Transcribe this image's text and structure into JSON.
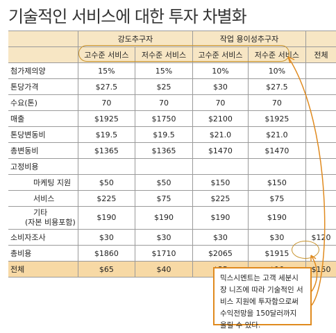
{
  "title": "기술적인 서비스에 대한 투자 차별화",
  "groups": {
    "strategy_a": "강도추구자",
    "strategy_b": "작업 용이성추구자"
  },
  "columns": [
    "고수준 서비스",
    "저수준 서비스",
    "고수준 서비스",
    "저수준 서비스",
    "전체"
  ],
  "rows": [
    {
      "label": "첨가제의양",
      "values": [
        "15%",
        "15%",
        "10%",
        "10%",
        ""
      ]
    },
    {
      "label": "톤당가격",
      "values": [
        "$27.5",
        "$25",
        "$30",
        "$27.5",
        ""
      ]
    },
    {
      "label": "수요(톤)",
      "values": [
        "70",
        "70",
        "70",
        "70",
        ""
      ]
    },
    {
      "label": "매출",
      "values": [
        "$1925",
        "$1750",
        "$2100",
        "$1925",
        ""
      ]
    },
    {
      "label": "톤당변동비",
      "values": [
        "$19.5",
        "$19.5",
        "$21.0",
        "$21.0",
        ""
      ]
    },
    {
      "label": "총변동비",
      "values": [
        "$1365",
        "$1365",
        "$1470",
        "$1470",
        ""
      ]
    },
    {
      "label": "고정비용",
      "values": [
        "",
        "",
        "",
        "",
        ""
      ]
    },
    {
      "label": "마케팅 지원",
      "values": [
        "$50",
        "$50",
        "$150",
        "$150",
        ""
      ]
    },
    {
      "label": "서비스",
      "values": [
        "$225",
        "$75",
        "$225",
        "$75",
        ""
      ]
    },
    {
      "label": "기타",
      "label2": "(자본 비용포함)",
      "values": [
        "$190",
        "$190",
        "$190",
        "$190",
        ""
      ]
    },
    {
      "label": "소비자조사",
      "values": [
        "$30",
        "$30",
        "$30",
        "$30",
        "$120"
      ]
    },
    {
      "label": "총비용",
      "values": [
        "$1860",
        "$1710",
        "$2065",
        "$1915",
        ""
      ]
    },
    {
      "label": "전체",
      "values": [
        "$65",
        "$40",
        "$35",
        "$10",
        "$150"
      ]
    }
  ],
  "note": "믹스시멘트는 고객 세분시장 니즈에 따라 기술적인 서비스 지원에 투자함으로써 수익전망을 150달러까지 올릴 수 있다.",
  "colors": {
    "header_bg": "#f7e6c4",
    "total_bg": "#f7d9a5",
    "accent": "#e08a1e"
  }
}
